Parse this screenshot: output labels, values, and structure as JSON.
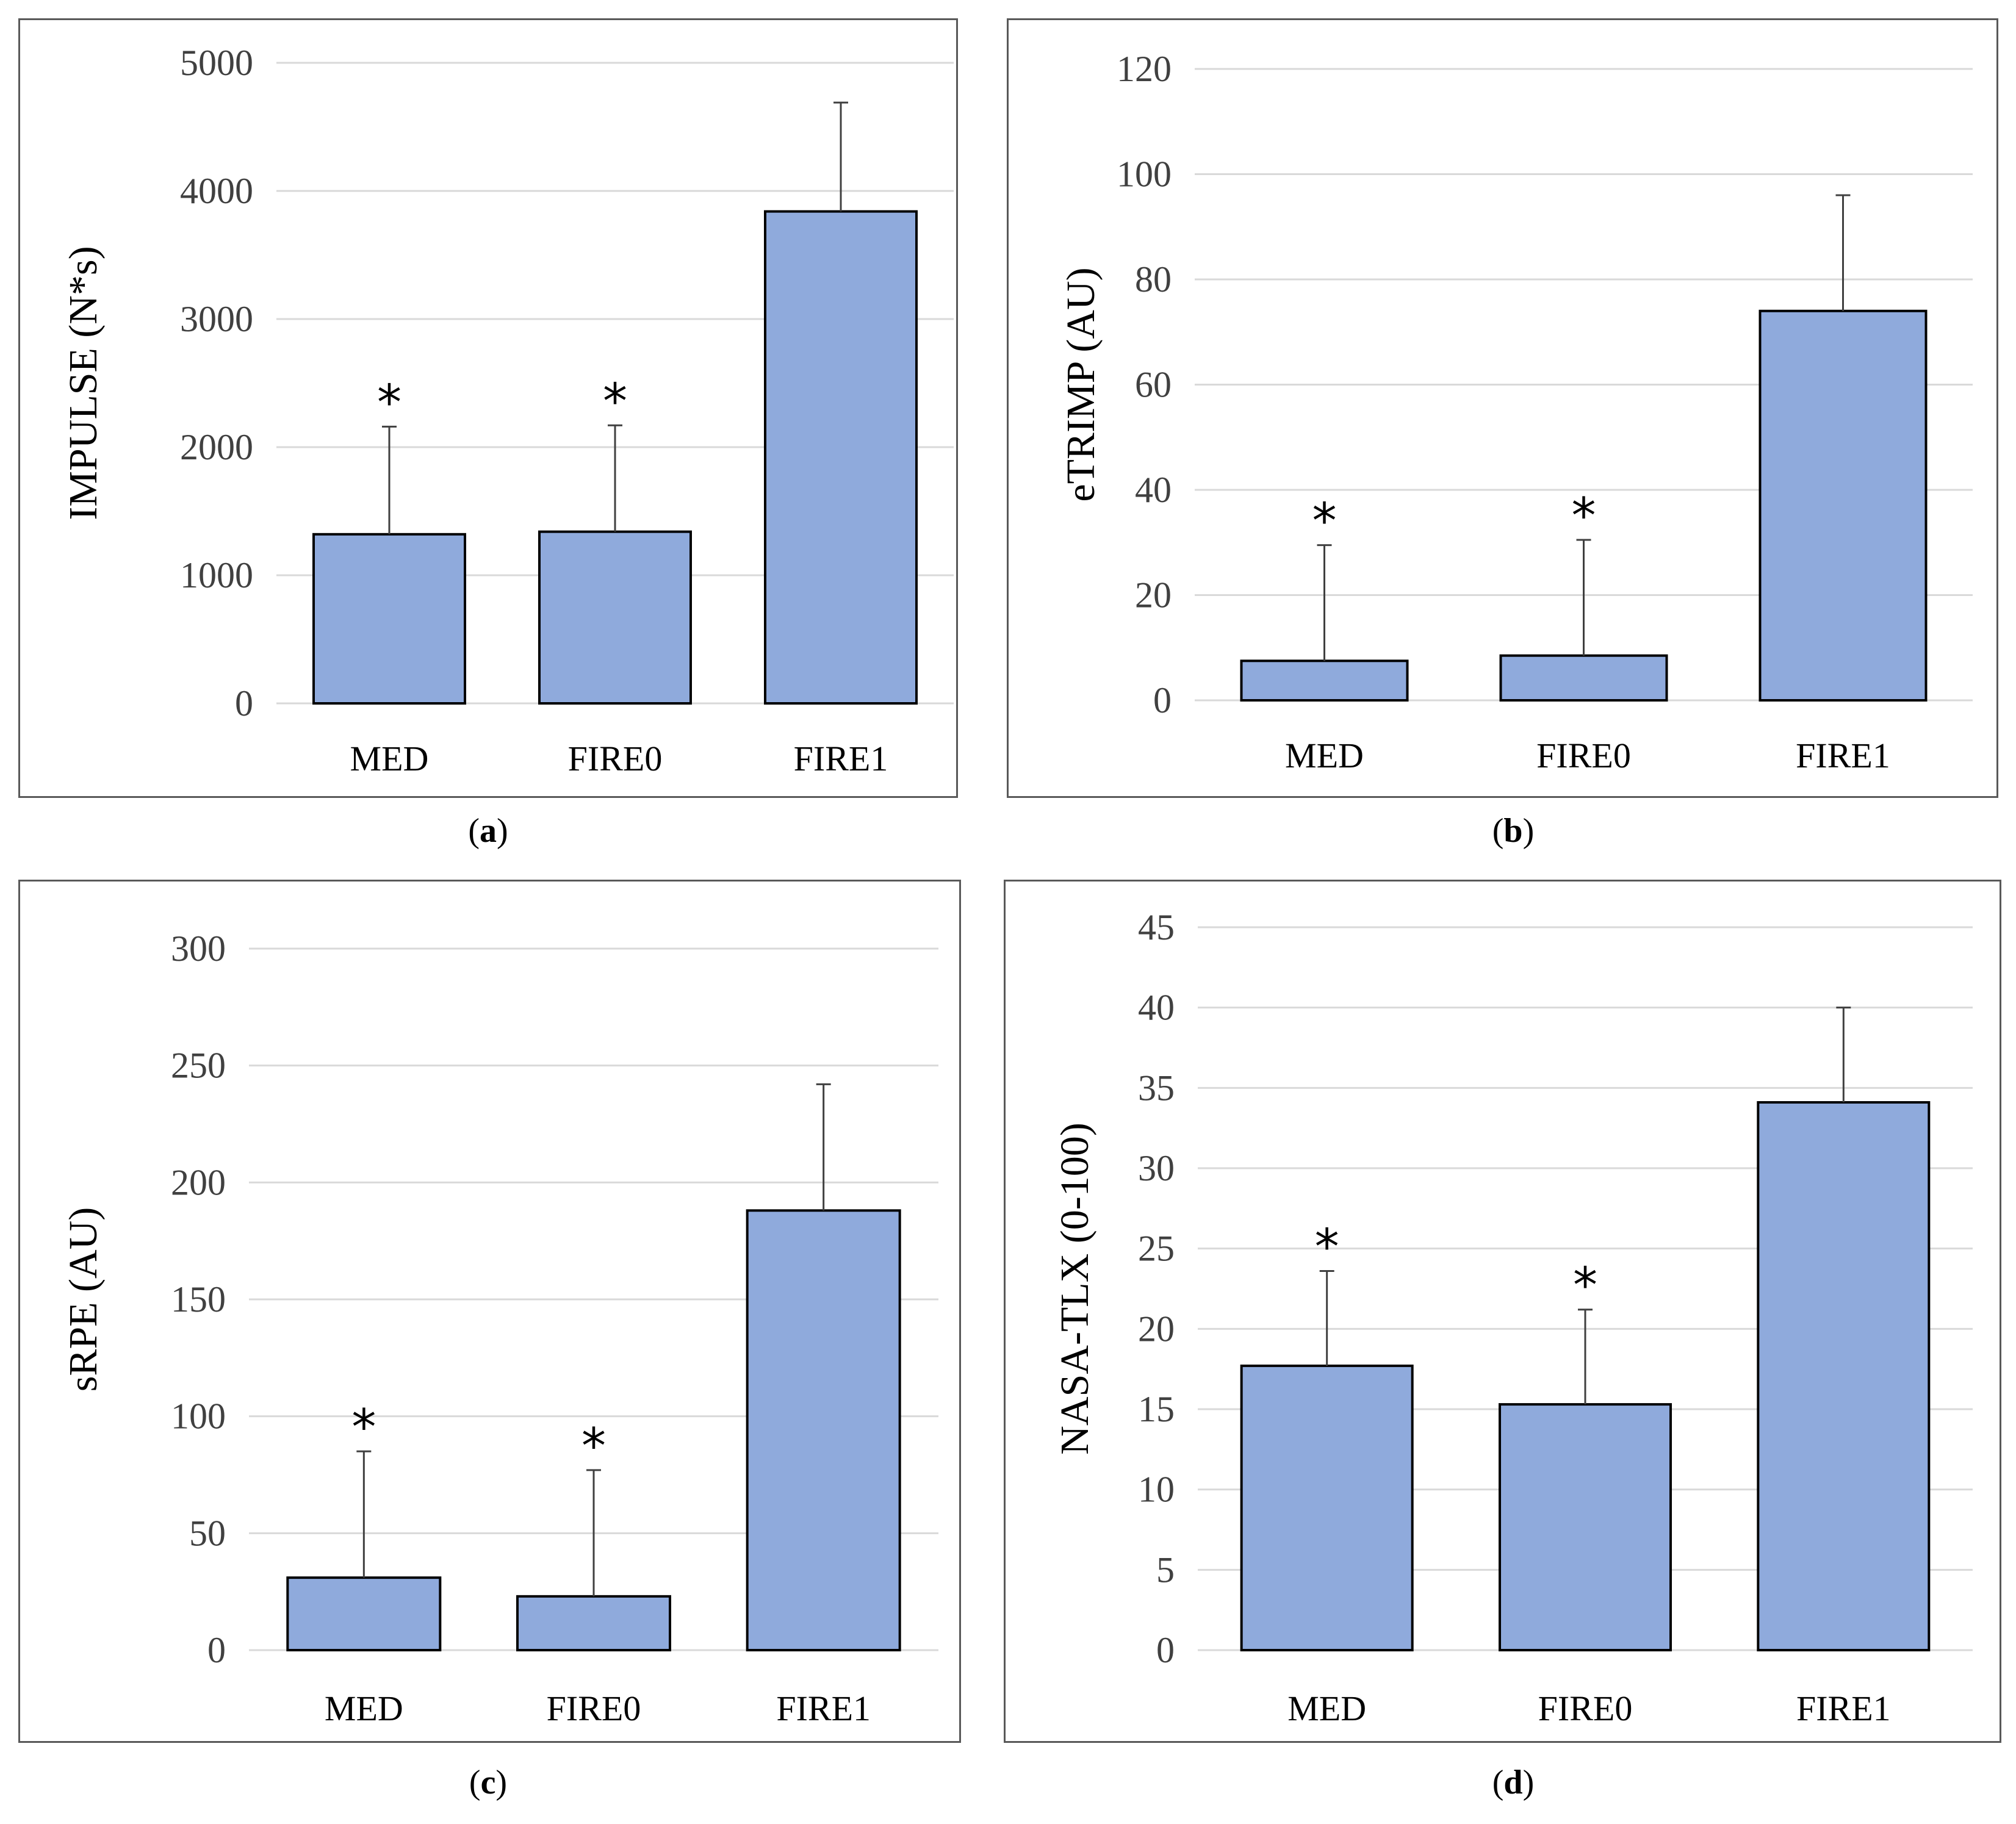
{
  "chart_data": [
    {
      "id": "a",
      "type": "bar",
      "panel_label": "a",
      "categories": [
        "MED",
        "FIRE0",
        "FIRE1"
      ],
      "values": [
        1320,
        1340,
        3840
      ],
      "error_upper": [
        2160,
        2170,
        4690
      ],
      "significance": [
        "*",
        "*",
        ""
      ],
      "ylabel": "IMPULSE (N*s)",
      "ylim": [
        0,
        5000
      ],
      "yticks": [
        0,
        1000,
        2000,
        3000,
        4000,
        5000
      ]
    },
    {
      "id": "b",
      "type": "bar",
      "panel_label": "b",
      "categories": [
        "MED",
        "FIRE0",
        "FIRE1"
      ],
      "values": [
        7.5,
        8.5,
        74
      ],
      "error_upper": [
        29.5,
        30.5,
        96
      ],
      "significance": [
        "*",
        "*",
        ""
      ],
      "ylabel": "eTRIMP (AU)",
      "ylim": [
        0,
        120
      ],
      "yticks": [
        0,
        20,
        40,
        60,
        80,
        100,
        120
      ]
    },
    {
      "id": "c",
      "type": "bar",
      "panel_label": "c",
      "categories": [
        "MED",
        "FIRE0",
        "FIRE1"
      ],
      "values": [
        31,
        23,
        188
      ],
      "error_upper": [
        85,
        77,
        242
      ],
      "significance": [
        "*",
        "*",
        ""
      ],
      "ylabel": "sRPE (AU)",
      "ylim": [
        0,
        300
      ],
      "yticks": [
        0,
        50,
        100,
        150,
        200,
        250,
        300
      ]
    },
    {
      "id": "d",
      "type": "bar",
      "panel_label": "d",
      "categories": [
        "MED",
        "FIRE0",
        "FIRE1"
      ],
      "values": [
        17.7,
        15.3,
        34.1
      ],
      "error_upper": [
        23.6,
        21.2,
        40.0
      ],
      "significance": [
        "*",
        "*",
        ""
      ],
      "ylabel": "NASA-TLX (0-100)",
      "ylim": [
        0,
        45
      ],
      "yticks": [
        0,
        5,
        10,
        15,
        20,
        25,
        30,
        35,
        40,
        45
      ]
    }
  ],
  "colors": {
    "bar_fill": "#8faadc",
    "bar_stroke": "#000000",
    "grid": "#d9d9d9"
  }
}
